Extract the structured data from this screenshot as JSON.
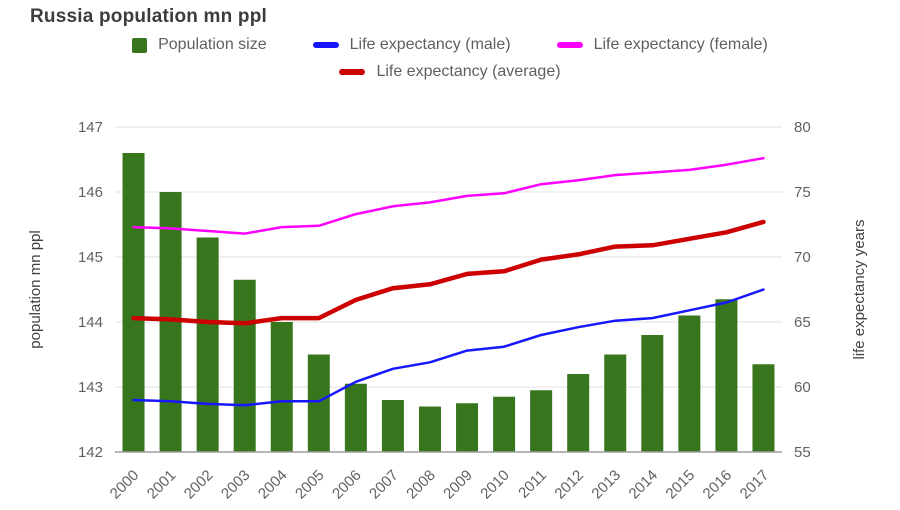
{
  "title": "Russia population mn ppl",
  "legend": [
    {
      "label": "Population size",
      "marker": "bar",
      "color": "#38761d"
    },
    {
      "label": "Life expectancy (male)",
      "marker": "line",
      "color": "#1616ff"
    },
    {
      "label": "Life expectancy (female)",
      "marker": "line",
      "color": "#ff00ff"
    },
    {
      "label": "Life expectancy (average)",
      "marker": "line",
      "color": "#cc0000"
    }
  ],
  "chart_data": {
    "type": "combo",
    "title": "Russia population mn ppl",
    "categories": [
      "2000",
      "2001",
      "2002",
      "2003",
      "2004",
      "2005",
      "2006",
      "2007",
      "2008",
      "2009",
      "2010",
      "2011",
      "2012",
      "2013",
      "2014",
      "2015",
      "2016",
      "2017"
    ],
    "series": [
      {
        "name": "Population size",
        "type": "bar",
        "axis": "left",
        "color": "#38761d",
        "values": [
          146.6,
          146.0,
          145.3,
          144.65,
          144.0,
          143.5,
          143.05,
          142.8,
          142.7,
          142.75,
          142.85,
          142.95,
          143.2,
          143.5,
          143.8,
          144.1,
          144.35,
          143.35
        ]
      },
      {
        "name": "Life expectancy (male)",
        "type": "line",
        "axis": "right",
        "color": "#1616ff",
        "width": 2.5,
        "values": [
          59.0,
          58.9,
          58.7,
          58.6,
          58.9,
          58.9,
          60.4,
          61.4,
          61.9,
          62.8,
          63.1,
          64.0,
          64.6,
          65.1,
          65.3,
          65.9,
          66.5,
          67.5
        ]
      },
      {
        "name": "Life expectancy (female)",
        "type": "line",
        "axis": "right",
        "color": "#ff00ff",
        "width": 2.5,
        "values": [
          72.3,
          72.2,
          72.0,
          71.8,
          72.3,
          72.4,
          73.3,
          73.9,
          74.2,
          74.7,
          74.9,
          75.6,
          75.9,
          76.3,
          76.5,
          76.7,
          77.1,
          77.6
        ]
      },
      {
        "name": "Life expectancy (average)",
        "type": "line",
        "axis": "right",
        "color": "#cc0000",
        "width": 4.5,
        "values": [
          65.3,
          65.2,
          65.0,
          64.9,
          65.3,
          65.3,
          66.7,
          67.6,
          67.9,
          68.7,
          68.9,
          69.8,
          70.2,
          70.8,
          70.9,
          71.4,
          71.9,
          72.7
        ]
      }
    ],
    "left_axis": {
      "label": "population mn ppl",
      "min": 142,
      "max": 147,
      "ticks": [
        142,
        143,
        144,
        145,
        146,
        147
      ]
    },
    "right_axis": {
      "label": "life expectancy years",
      "min": 55,
      "max": 80,
      "ticks": [
        55,
        60,
        65,
        70,
        75,
        80
      ]
    },
    "grid": true,
    "legend_position": "top"
  },
  "colors": {
    "grid": "#e0e0e0",
    "baseline": "#9e9e9e",
    "tick_text": "#616161",
    "axis_title": "#424242"
  }
}
